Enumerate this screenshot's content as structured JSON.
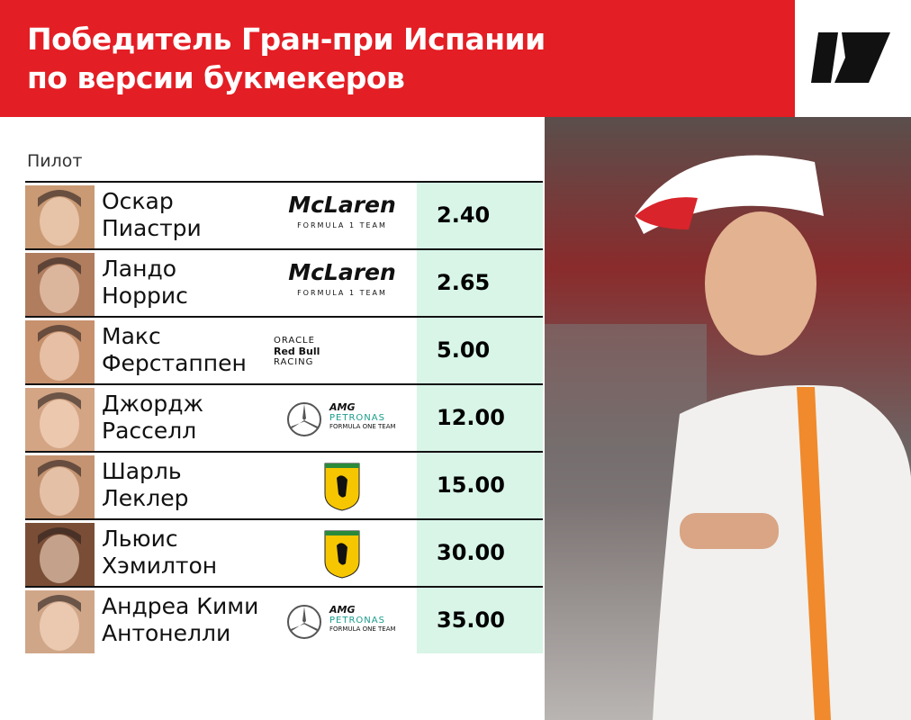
{
  "header": {
    "title": [
      "Победитель Гран-при Испании",
      "по версии букмекеров"
    ]
  },
  "table": {
    "column": "Пилот",
    "rows": [
      {
        "name": [
          "Оскар",
          "Пиастри"
        ],
        "logo": [
          "McLaren",
          "FORMULA 1 TEAM"
        ],
        "odds": "2.40"
      },
      {
        "name": [
          "Ландо",
          "Норрис"
        ],
        "logo": [
          "McLaren",
          "FORMULA 1 TEAM"
        ],
        "odds": "2.65"
      },
      {
        "name": [
          "Макс",
          "Ферстаппен"
        ],
        "logo": [
          "ORACLE",
          "Red Bull",
          "RACING"
        ],
        "odds": "5.00"
      },
      {
        "name": [
          "Джордж",
          "Расселл"
        ],
        "logo": [
          "AMG",
          "PETRONAS",
          "FORMULA ONE TEAM"
        ],
        "odds": "12.00"
      },
      {
        "name": [
          "Шарль",
          "Леклер"
        ],
        "odds": "15.00"
      },
      {
        "name": [
          "Льюис",
          "Хэмилтон"
        ],
        "odds": "30.00"
      },
      {
        "name": [
          "Андреа Кими",
          "Антонелли"
        ],
        "logo": [
          "AMG",
          "PETRONAS",
          "FORMULA ONE TEAM"
        ],
        "odds": "35.00"
      }
    ]
  }
}
